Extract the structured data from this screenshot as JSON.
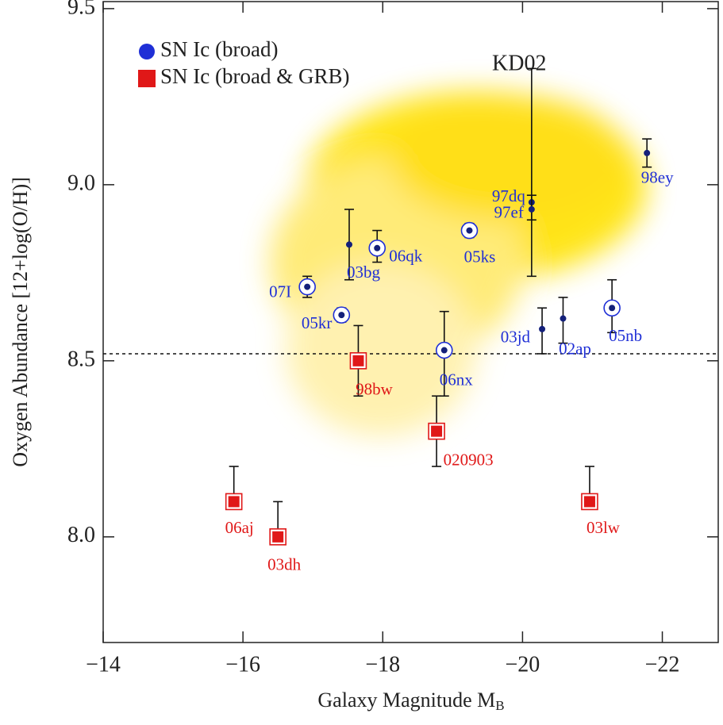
{
  "chart_data": {
    "type": "scatter",
    "xlabel": "Galaxy Magnitude M",
    "xlabel_subscript": "B",
    "ylabel": "Oxygen Abundance [12+log(O/H)]",
    "annotation": "KD02",
    "xlim": [
      -14,
      -22.8
    ],
    "ylim": [
      7.7,
      9.52
    ],
    "xticks": [
      {
        "value": -14,
        "label": "−14"
      },
      {
        "value": -16,
        "label": "−16"
      },
      {
        "value": -18,
        "label": "−18"
      },
      {
        "value": -20,
        "label": "−20"
      },
      {
        "value": -22,
        "label": "−22"
      }
    ],
    "yticks": [
      {
        "value": 8,
        "label": "8.0"
      },
      8.5,
      {
        "value": 9,
        "label": "9.0"
      },
      9.5
    ],
    "reference_line": 8.52,
    "legend": "upper left",
    "series": [
      {
        "name": "SN Ic (broad)",
        "color": "#1f2fd6",
        "marker": "circle",
        "labels": [
          "98ey",
          "97dq",
          "97ef",
          "05ks",
          "06qk",
          "03bg",
          "07I",
          "05kr",
          "06nx",
          "03jd",
          "02ap",
          "05nb"
        ],
        "x": [
          -21.78,
          -20.13,
          -20.13,
          -19.24,
          -17.92,
          -17.52,
          -16.92,
          -17.41,
          -18.88,
          -20.28,
          -20.58,
          -21.28
        ],
        "values": [
          9.09,
          8.95,
          8.93,
          8.87,
          8.82,
          8.83,
          8.71,
          8.63,
          8.53,
          8.59,
          8.62,
          8.65
        ],
        "ylow": [
          9.05,
          8.9,
          8.74,
          8.85,
          8.78,
          8.73,
          8.68,
          8.61,
          8.4,
          8.52,
          8.55,
          8.58
        ],
        "yhigh": [
          9.13,
          8.97,
          9.33,
          8.89,
          8.87,
          8.93,
          8.74,
          8.65,
          8.64,
          8.65,
          8.68,
          8.73
        ],
        "ring": [
          false,
          false,
          false,
          true,
          true,
          false,
          true,
          true,
          true,
          false,
          false,
          true
        ]
      },
      {
        "name": "SN Ic (broad & GRB)",
        "color": "#e01818",
        "marker": "square",
        "labels": [
          "98bw",
          "020903",
          "06aj",
          "03dh",
          "03lw"
        ],
        "x": [
          -17.65,
          -18.77,
          -15.87,
          -16.5,
          -20.96
        ],
        "values": [
          8.5,
          8.3,
          8.1,
          8.0,
          8.1
        ],
        "ylow": [
          8.4,
          8.2,
          8.1,
          8.0,
          8.1
        ],
        "yhigh": [
          8.6,
          8.4,
          8.2,
          8.1,
          8.2
        ],
        "ring": [
          true,
          true,
          true,
          true,
          true
        ]
      }
    ]
  }
}
